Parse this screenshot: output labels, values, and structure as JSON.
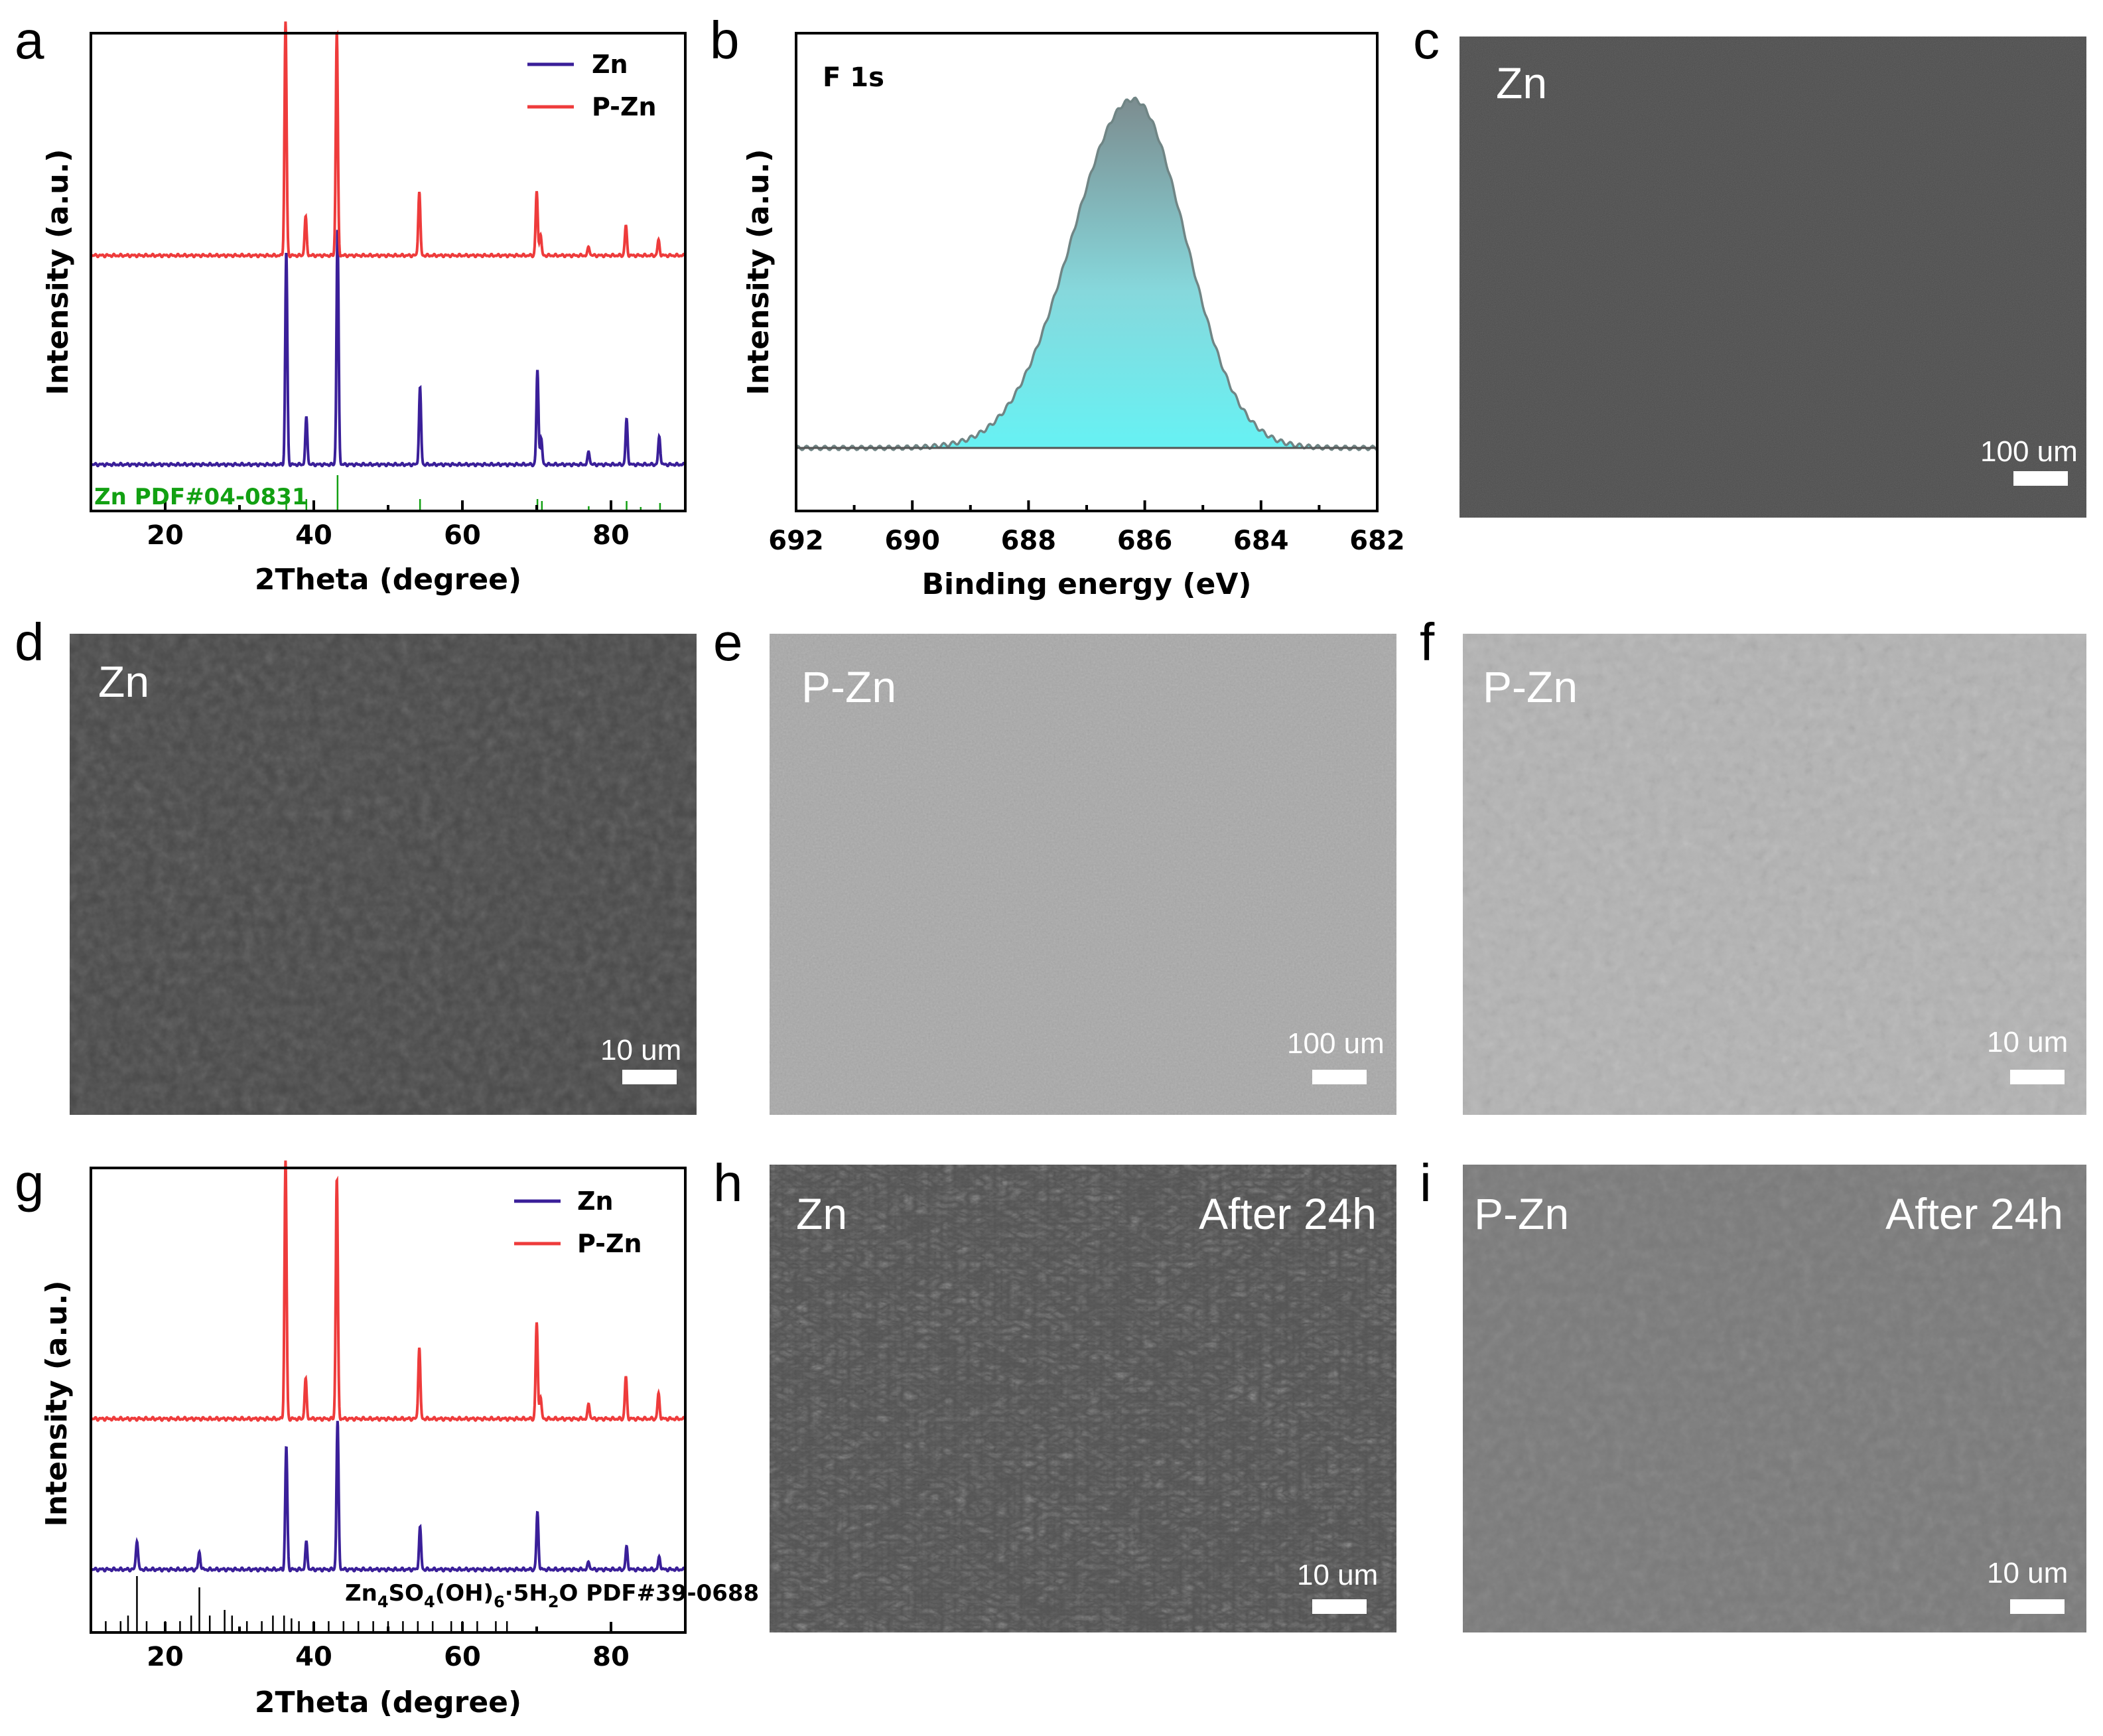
{
  "colors": {
    "zn": "#3a1f99",
    "pzn": "#ee3b3b",
    "ref": "#12a012",
    "xps_fill_top": "#7c8c8f",
    "xps_fill_bottom": "#66f2f4"
  },
  "panels": {
    "a": {
      "letter": "a"
    },
    "b": {
      "letter": "b"
    },
    "c": {
      "letter": "c"
    },
    "d": {
      "letter": "d"
    },
    "e": {
      "letter": "e"
    },
    "f": {
      "letter": "f"
    },
    "g": {
      "letter": "g"
    },
    "h": {
      "letter": "h"
    },
    "i": {
      "letter": "i"
    }
  },
  "sem": {
    "c": {
      "label": "Zn",
      "scale": "100 um",
      "tone": "dark-smooth"
    },
    "d": {
      "label": "Zn",
      "scale": "10 um",
      "tone": "dark-smooth"
    },
    "e": {
      "label": "P-Zn",
      "scale": "100 um",
      "tone": "light-granular"
    },
    "f": {
      "label": "P-Zn",
      "scale": "10 um",
      "tone": "light-grains"
    },
    "h": {
      "label": "Zn",
      "label2": "After 24h",
      "scale": "10 um",
      "tone": "dark-flakes"
    },
    "i": {
      "label": "P-Zn",
      "label2": "After 24h",
      "scale": "10 um",
      "tone": "gray-grains"
    }
  },
  "chart_data": [
    {
      "id": "a",
      "type": "line",
      "xlabel": "2Theta (degree)",
      "ylabel": "Intensity (a.u.)",
      "xlim": [
        10,
        90
      ],
      "xticks": [
        20,
        40,
        60,
        80
      ],
      "legend": {
        "position": "top-right",
        "entries": [
          "Zn",
          "P-Zn"
        ]
      },
      "series": [
        {
          "name": "Zn",
          "color": "#3a1f99",
          "offset": 0.45,
          "peaks": [
            [
              36.3,
              1.0
            ],
            [
              39.0,
              0.22
            ],
            [
              43.2,
              1.1
            ],
            [
              54.3,
              0.36
            ],
            [
              70.1,
              0.44
            ],
            [
              70.6,
              0.12
            ],
            [
              77.0,
              0.06
            ],
            [
              82.1,
              0.21
            ],
            [
              86.5,
              0.13
            ]
          ]
        },
        {
          "name": "P-Zn",
          "color": "#ee3b3b",
          "offset": 1.0,
          "peaks": [
            [
              36.2,
              1.1
            ],
            [
              38.9,
              0.18
            ],
            [
              43.1,
              1.05
            ],
            [
              54.2,
              0.3
            ],
            [
              70.0,
              0.3
            ],
            [
              70.5,
              0.1
            ],
            [
              77.0,
              0.04
            ],
            [
              82.0,
              0.14
            ],
            [
              86.4,
              0.07
            ]
          ]
        }
      ],
      "reference": {
        "label": "Zn PDF#04-0831",
        "color": "#12a012",
        "lines": [
          [
            36.3,
            0.4
          ],
          [
            39.0,
            0.3
          ],
          [
            43.2,
            0.9
          ],
          [
            54.3,
            0.3
          ],
          [
            70.1,
            0.3
          ],
          [
            70.7,
            0.25
          ],
          [
            77.0,
            0.12
          ],
          [
            82.1,
            0.25
          ],
          [
            84.0,
            0.1
          ],
          [
            86.6,
            0.2
          ]
        ]
      }
    },
    {
      "id": "b",
      "type": "area",
      "title": "F 1s",
      "xlabel": "Binding energy (eV)",
      "ylabel": "Intensity (a.u.)",
      "xlim": [
        692,
        682
      ],
      "xticks": [
        692,
        690,
        688,
        686,
        684,
        682
      ],
      "peak": {
        "center": 686.2,
        "height": 1.0,
        "baseline": 0.0
      }
    },
    {
      "id": "g",
      "type": "line",
      "xlabel": "2Theta (degree)",
      "ylabel": "Intensity (a.u.)",
      "xlim": [
        10,
        90
      ],
      "xticks": [
        20,
        40,
        60,
        80
      ],
      "legend": {
        "position": "top-right",
        "entries": [
          "Zn",
          "P-Zn"
        ]
      },
      "series": [
        {
          "name": "Zn",
          "color": "#3a1f99",
          "offset": 0.45,
          "peaks": [
            [
              16.2,
              0.12
            ],
            [
              24.6,
              0.07
            ],
            [
              36.3,
              0.5
            ],
            [
              39.0,
              0.11
            ],
            [
              43.2,
              0.6
            ],
            [
              54.3,
              0.17
            ],
            [
              70.1,
              0.23
            ],
            [
              77.0,
              0.03
            ],
            [
              82.1,
              0.09
            ],
            [
              86.5,
              0.05
            ]
          ]
        },
        {
          "name": "P-Zn",
          "color": "#ee3b3b",
          "offset": 1.0,
          "peaks": [
            [
              36.2,
              1.05
            ],
            [
              38.9,
              0.16
            ],
            [
              43.1,
              0.98
            ],
            [
              54.2,
              0.29
            ],
            [
              70.0,
              0.39
            ],
            [
              70.5,
              0.09
            ],
            [
              77.0,
              0.06
            ],
            [
              82.0,
              0.17
            ],
            [
              86.4,
              0.1
            ]
          ]
        }
      ],
      "reference": {
        "label_parts": [
          "Zn",
          "4",
          "SO",
          "4",
          "(OH)",
          "6",
          "·5H",
          "2",
          "O PDF#39-0688"
        ],
        "color": "#000000",
        "lines": [
          [
            12.0,
            0.2
          ],
          [
            14.0,
            0.2
          ],
          [
            15.0,
            0.3
          ],
          [
            16.2,
            1.0
          ],
          [
            17.5,
            0.2
          ],
          [
            20.0,
            0.2
          ],
          [
            22.0,
            0.2
          ],
          [
            23.5,
            0.3
          ],
          [
            24.6,
            0.8
          ],
          [
            26.0,
            0.3
          ],
          [
            28.0,
            0.4
          ],
          [
            29.0,
            0.3
          ],
          [
            31.0,
            0.2
          ],
          [
            33.0,
            0.2
          ],
          [
            34.5,
            0.3
          ],
          [
            36.0,
            0.3
          ],
          [
            37.0,
            0.25
          ],
          [
            38.0,
            0.2
          ],
          [
            40.0,
            0.2
          ],
          [
            42.0,
            0.2
          ],
          [
            44.0,
            0.2
          ],
          [
            46.0,
            0.2
          ],
          [
            48.0,
            0.2
          ],
          [
            50.0,
            0.2
          ],
          [
            52.0,
            0.2
          ],
          [
            54.0,
            0.2
          ],
          [
            56.0,
            0.2
          ],
          [
            58.5,
            0.2
          ],
          [
            60.0,
            0.2
          ],
          [
            62.0,
            0.2
          ],
          [
            64.5,
            0.2
          ],
          [
            66.0,
            0.2
          ]
        ]
      }
    }
  ]
}
